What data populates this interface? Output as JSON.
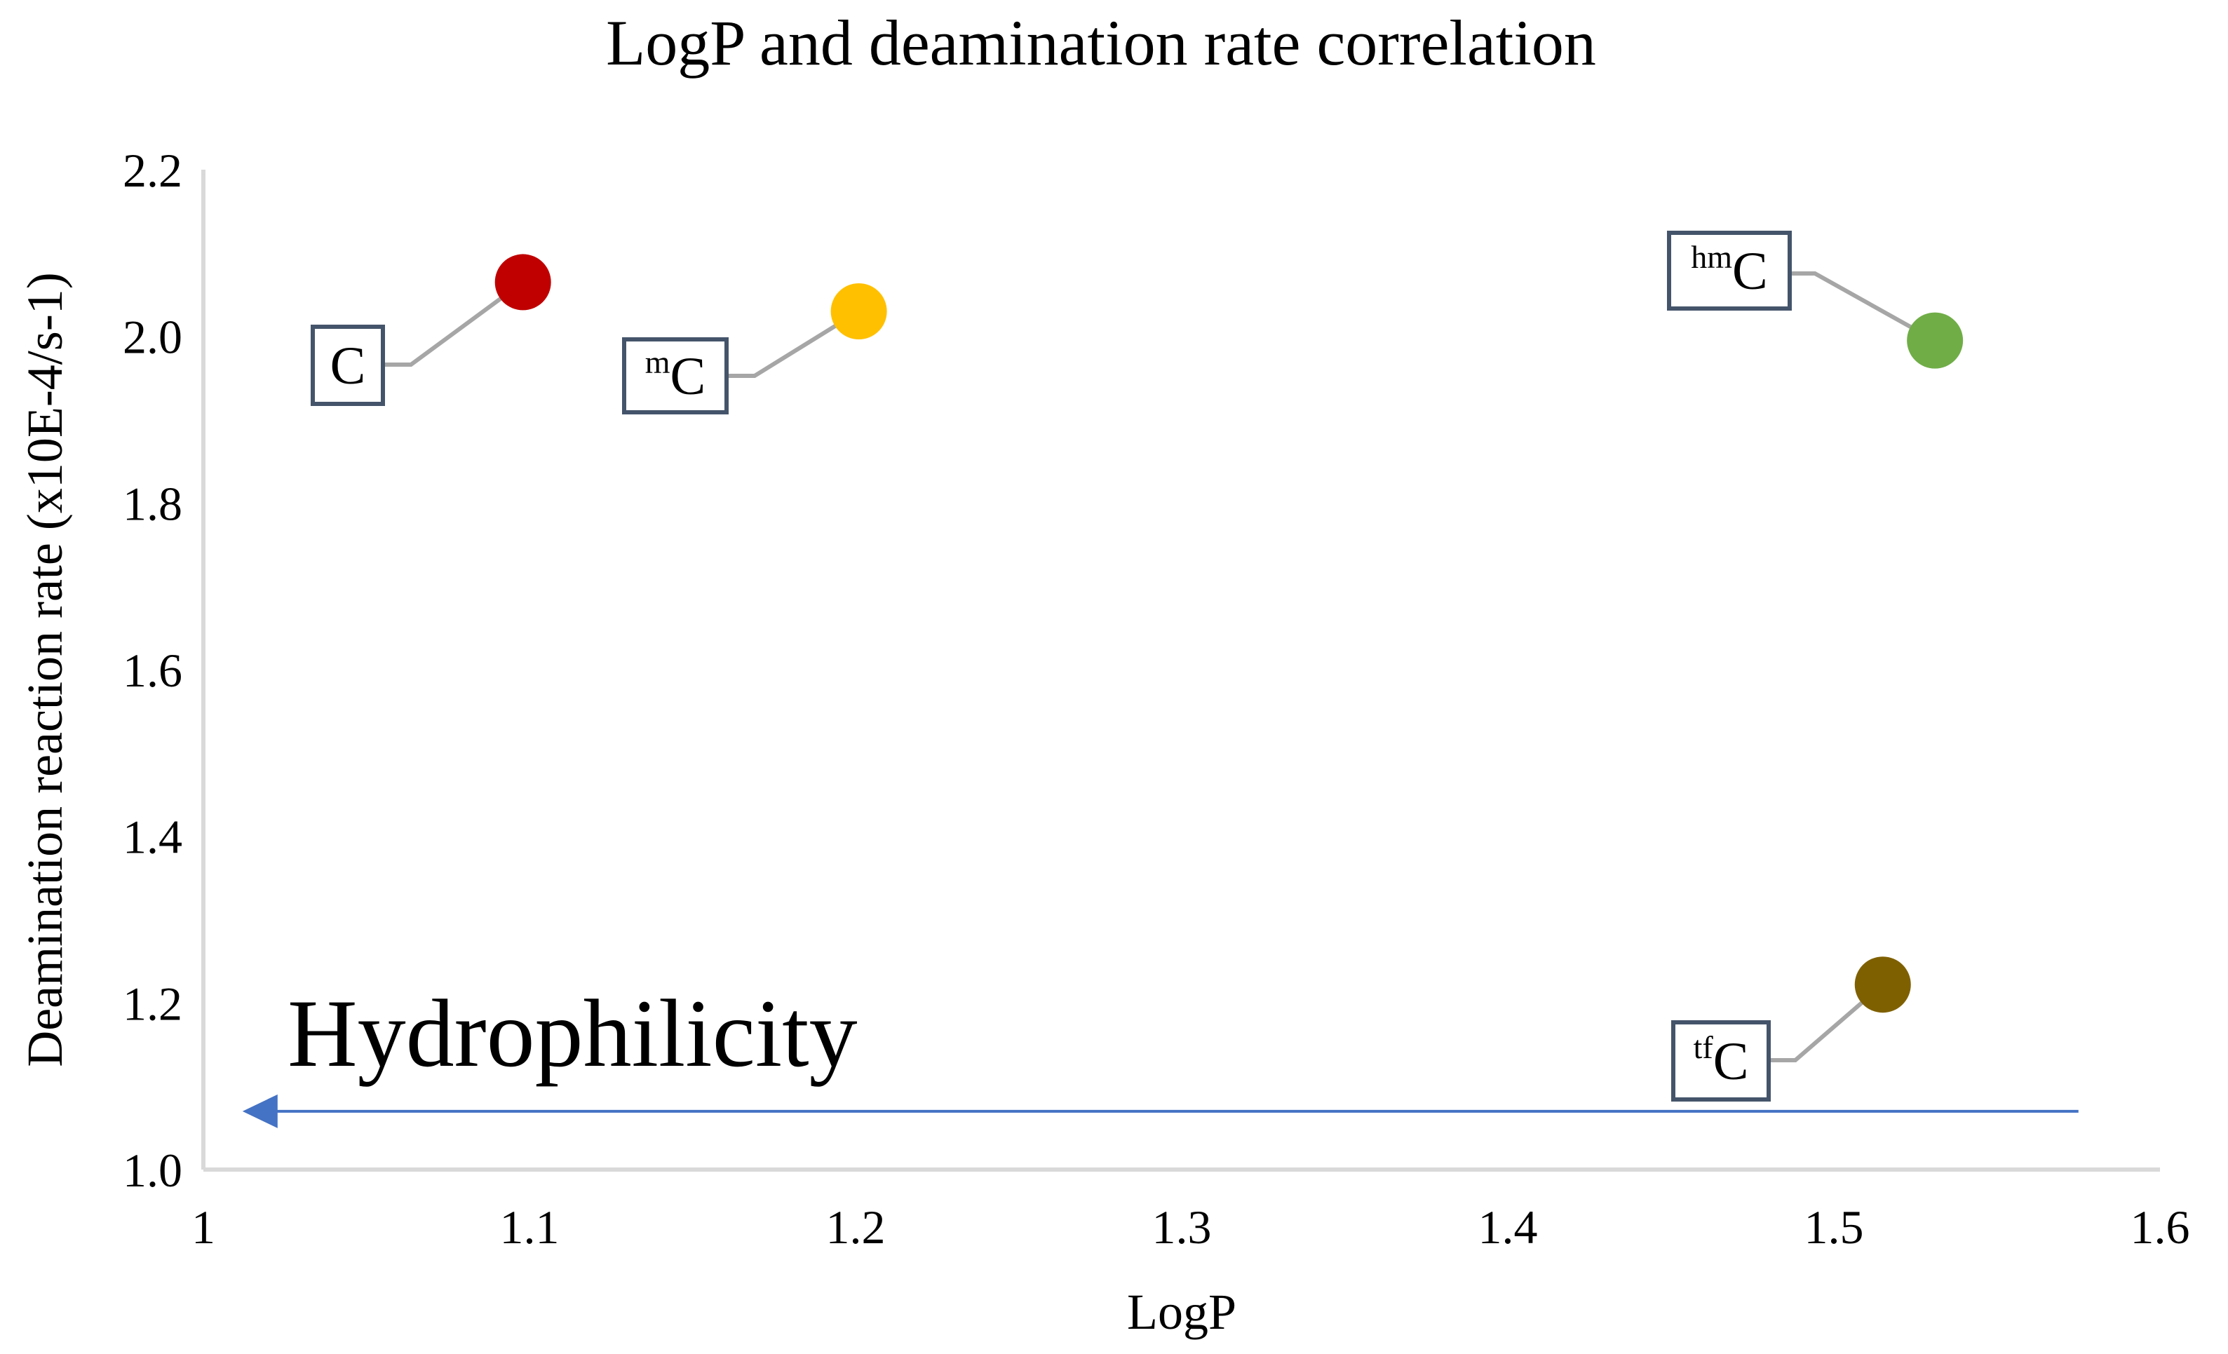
{
  "chart_data": {
    "type": "scatter",
    "title": "LogP and deamination rate correlation",
    "xlabel": "LogP",
    "ylabel": "Deamination reaction rate (x10E-4/s-1)",
    "xlim": [
      1,
      1.6
    ],
    "ylim": [
      1.0,
      2.2
    ],
    "x_ticks": [
      "1",
      "1.1",
      "1.2",
      "1.3",
      "1.4",
      "1.5",
      "1.6"
    ],
    "y_ticks": [
      "1.0",
      "1.2",
      "1.4",
      "1.6",
      "1.8",
      "2.0",
      "2.2"
    ],
    "grid": false,
    "points": [
      {
        "name": "C",
        "prefix": "",
        "base": "C",
        "x": 1.098,
        "y": 2.065,
        "color": "#c00000"
      },
      {
        "name": "mC",
        "prefix": "m",
        "base": "C",
        "x": 1.201,
        "y": 2.03,
        "color": "#ffc000"
      },
      {
        "name": "hmC",
        "prefix": "hm",
        "base": "C",
        "x": 1.531,
        "y": 1.995,
        "color": "#70ad47"
      },
      {
        "name": "tfC",
        "prefix": "tf",
        "base": "C",
        "x": 1.515,
        "y": 1.222,
        "color": "#7f6000"
      }
    ],
    "annotation": {
      "text": "Hydrophilicity",
      "arrow_direction": "left",
      "arrow_y": 1.07,
      "arrow_x_from": 1.575,
      "arrow_x_to": 1.012,
      "arrow_color": "#4472c4"
    }
  }
}
